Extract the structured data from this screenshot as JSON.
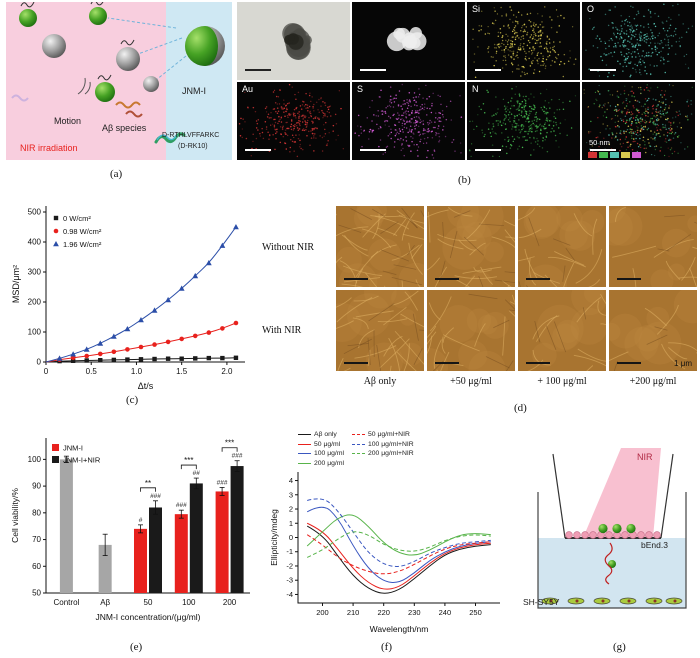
{
  "figure": {
    "panel_labels": [
      "(a)",
      "(b)",
      "(c)",
      "(d)",
      "(e)",
      "(f)",
      "(g)"
    ]
  },
  "panel_a": {
    "motion_label": "Motion",
    "abeta_label": "Aβ species",
    "nir_label": "NIR irradiation",
    "jnm_label": "JNM-I",
    "peptide_label_1": "D-RTHLVFFARKC",
    "peptide_label_2": "(D-RK10)",
    "colors": {
      "left_bg": "#f8cede",
      "right_bg": "#cfe8f3",
      "nir_text": "#e8211d"
    }
  },
  "panel_b": {
    "tiles": [
      {
        "name": "tem",
        "label": ""
      },
      {
        "name": "stem",
        "label": ""
      },
      {
        "name": "si-map",
        "label": "Si",
        "dot_color": "#d8c84f"
      },
      {
        "name": "o-map",
        "label": "O",
        "dot_color": "#56c1b1"
      },
      {
        "name": "au-map",
        "label": "Au",
        "dot_color": "#d23535"
      },
      {
        "name": "s-map",
        "label": "S",
        "dot_color": "#cf5ad2"
      },
      {
        "name": "n-map",
        "label": "N",
        "dot_color": "#45b84f"
      },
      {
        "name": "merge",
        "label": "",
        "merge_colors": [
          "#d23535",
          "#45b84f",
          "#56c1b1",
          "#d8c84f"
        ]
      }
    ],
    "scale_label": "50 nm",
    "strip_colors": [
      "#d23535",
      "#45b84f",
      "#56c1b1",
      "#d8c84f",
      "#cf5ad2"
    ]
  },
  "panel_d": {
    "row_labels": [
      "Without NIR",
      "With NIR"
    ],
    "col_labels": [
      "Aβ only",
      "+50 μg/ml",
      "+ 100 μg/ml",
      "+200 μg/ml"
    ],
    "scale_label": "1 μm"
  },
  "panel_g": {
    "nir_label": "NIR",
    "bend3_label": "bEnd.3",
    "shsy5y_label": "SH-SY5Y"
  },
  "chart_data": [
    {
      "id": "msd",
      "type": "scatter",
      "xlabel": "Δt/s",
      "ylabel": "MSD/μm²",
      "xlim": [
        0,
        2.2
      ],
      "ylim": [
        0,
        520
      ],
      "xticks": [
        0,
        0.5,
        1.0,
        1.5,
        2.0
      ],
      "xtick_labels": [
        "0",
        "0.5",
        "1.0",
        "1.5",
        "2.0"
      ],
      "yticks": [
        0,
        100,
        200,
        300,
        400,
        500
      ],
      "legend_position": "top-left",
      "x": [
        0.15,
        0.3,
        0.45,
        0.6,
        0.75,
        0.9,
        1.05,
        1.2,
        1.35,
        1.5,
        1.65,
        1.8,
        1.95,
        2.1
      ],
      "series": [
        {
          "name": "0 W/cm²",
          "color": "#1a1a1a",
          "marker": "square",
          "values": [
            3,
            4,
            5,
            6,
            7,
            8,
            9,
            10,
            11,
            11,
            12,
            13,
            13,
            14
          ]
        },
        {
          "name": "0.98 W/cm²",
          "color": "#e8211d",
          "marker": "circle",
          "values": [
            8,
            14,
            20,
            27,
            34,
            42,
            50,
            58,
            67,
            77,
            87,
            98,
            112,
            130
          ]
        },
        {
          "name": "1.96 W/cm²",
          "color": "#2b4ea8",
          "marker": "triangle",
          "values": [
            12,
            26,
            42,
            62,
            85,
            110,
            140,
            172,
            207,
            245,
            287,
            330,
            388,
            450
          ]
        }
      ]
    },
    {
      "id": "viability",
      "type": "bar",
      "xlabel": "JNM-I concentration/(μg/ml)",
      "ylabel": "Cell viability/%",
      "ylim": [
        50,
        108
      ],
      "yticks": [
        50,
        60,
        70,
        80,
        90,
        100
      ],
      "legend": [
        {
          "label": "JNM-I",
          "color": "#e8211d"
        },
        {
          "label": "JNM-I+NIR",
          "color": "#1a1a1a"
        }
      ],
      "groups": [
        {
          "category": "Control",
          "bars": [
            {
              "value": 100,
              "error": 1.2,
              "color": "#a6a6a6"
            }
          ]
        },
        {
          "category": "Aβ",
          "bars": [
            {
              "value": 68,
              "error": 4,
              "color": "#a6a6a6"
            }
          ]
        },
        {
          "category": "50",
          "bars": [
            {
              "value": 74,
              "error": 1.5,
              "color": "#e8211d",
              "sig": "#"
            },
            {
              "value": 82,
              "error": 2.5,
              "color": "#1a1a1a",
              "sig": "###"
            }
          ],
          "bracket": "**"
        },
        {
          "category": "100",
          "bars": [
            {
              "value": 79.5,
              "error": 1.5,
              "color": "#e8211d",
              "sig": "###"
            },
            {
              "value": 91,
              "error": 2,
              "color": "#1a1a1a",
              "sig": "##"
            }
          ],
          "bracket": "***"
        },
        {
          "category": "200",
          "bars": [
            {
              "value": 88,
              "error": 1.5,
              "color": "#e8211d",
              "sig": "###"
            },
            {
              "value": 97.5,
              "error": 2,
              "color": "#1a1a1a",
              "sig": "###"
            }
          ],
          "bracket": "***"
        }
      ]
    },
    {
      "id": "cd",
      "type": "line",
      "xlabel": "Wavelength/nm",
      "ylabel": "Ellipticity/mdeg",
      "xlim": [
        192,
        258
      ],
      "ylim": [
        -4.6,
        4.6
      ],
      "xticks": [
        200,
        210,
        220,
        230,
        240,
        250
      ],
      "yticks": [
        -4,
        -3,
        -2,
        -1,
        0,
        1,
        2,
        3,
        4
      ],
      "x": [
        195,
        200,
        205,
        210,
        215,
        220,
        225,
        230,
        235,
        240,
        245,
        250,
        255
      ],
      "series": [
        {
          "name": "Aβ only",
          "color": "#1a1a1a",
          "dash": false,
          "values": [
            0.8,
            0.2,
            -1.3,
            -2.7,
            -3.6,
            -4.0,
            -3.7,
            -2.9,
            -2.0,
            -1.2,
            -0.8,
            -0.6,
            -0.5
          ]
        },
        {
          "name": "50 μg/ml",
          "color": "#e8211d",
          "dash": false,
          "values": [
            1.0,
            0.5,
            -0.8,
            -2.2,
            -3.2,
            -3.7,
            -3.5,
            -2.7,
            -1.8,
            -1.1,
            -0.7,
            -0.5,
            -0.4
          ]
        },
        {
          "name": "100 μg/ml",
          "color": "#3a57c0",
          "dash": false,
          "values": [
            1.8,
            2.4,
            1.4,
            -0.6,
            -2.2,
            -3.1,
            -3.2,
            -2.5,
            -1.6,
            -1.0,
            -0.6,
            -0.4,
            -0.3
          ]
        },
        {
          "name": "200 μg/ml",
          "color": "#58b44a",
          "dash": false,
          "values": [
            -0.6,
            0.4,
            1.4,
            1.7,
            0.8,
            -0.4,
            -1.1,
            -1.3,
            -0.9,
            -0.3,
            0.2,
            0.3,
            0.2
          ]
        },
        {
          "name": "50 μg/ml+NIR",
          "color": "#e8211d",
          "dash": true,
          "values": [
            0.2,
            -0.5,
            -1.4,
            -2.0,
            -2.4,
            -2.6,
            -2.4,
            -1.9,
            -1.3,
            -0.8,
            -0.5,
            -0.4,
            -0.3
          ]
        },
        {
          "name": "100 μg/ml+NIR",
          "color": "#3a57c0",
          "dash": true,
          "values": [
            2.6,
            2.9,
            1.9,
            0.4,
            -1.1,
            -1.9,
            -2.1,
            -1.7,
            -1.1,
            -0.7,
            -0.4,
            -0.3,
            -0.2
          ]
        },
        {
          "name": "200 μg/ml+NIR",
          "color": "#58b44a",
          "dash": true,
          "values": [
            -1.4,
            -0.9,
            -0.1,
            0.5,
            0.2,
            -0.5,
            -0.9,
            -1.0,
            -0.7,
            -0.2,
            0.1,
            0.2,
            0.1
          ]
        }
      ]
    }
  ]
}
